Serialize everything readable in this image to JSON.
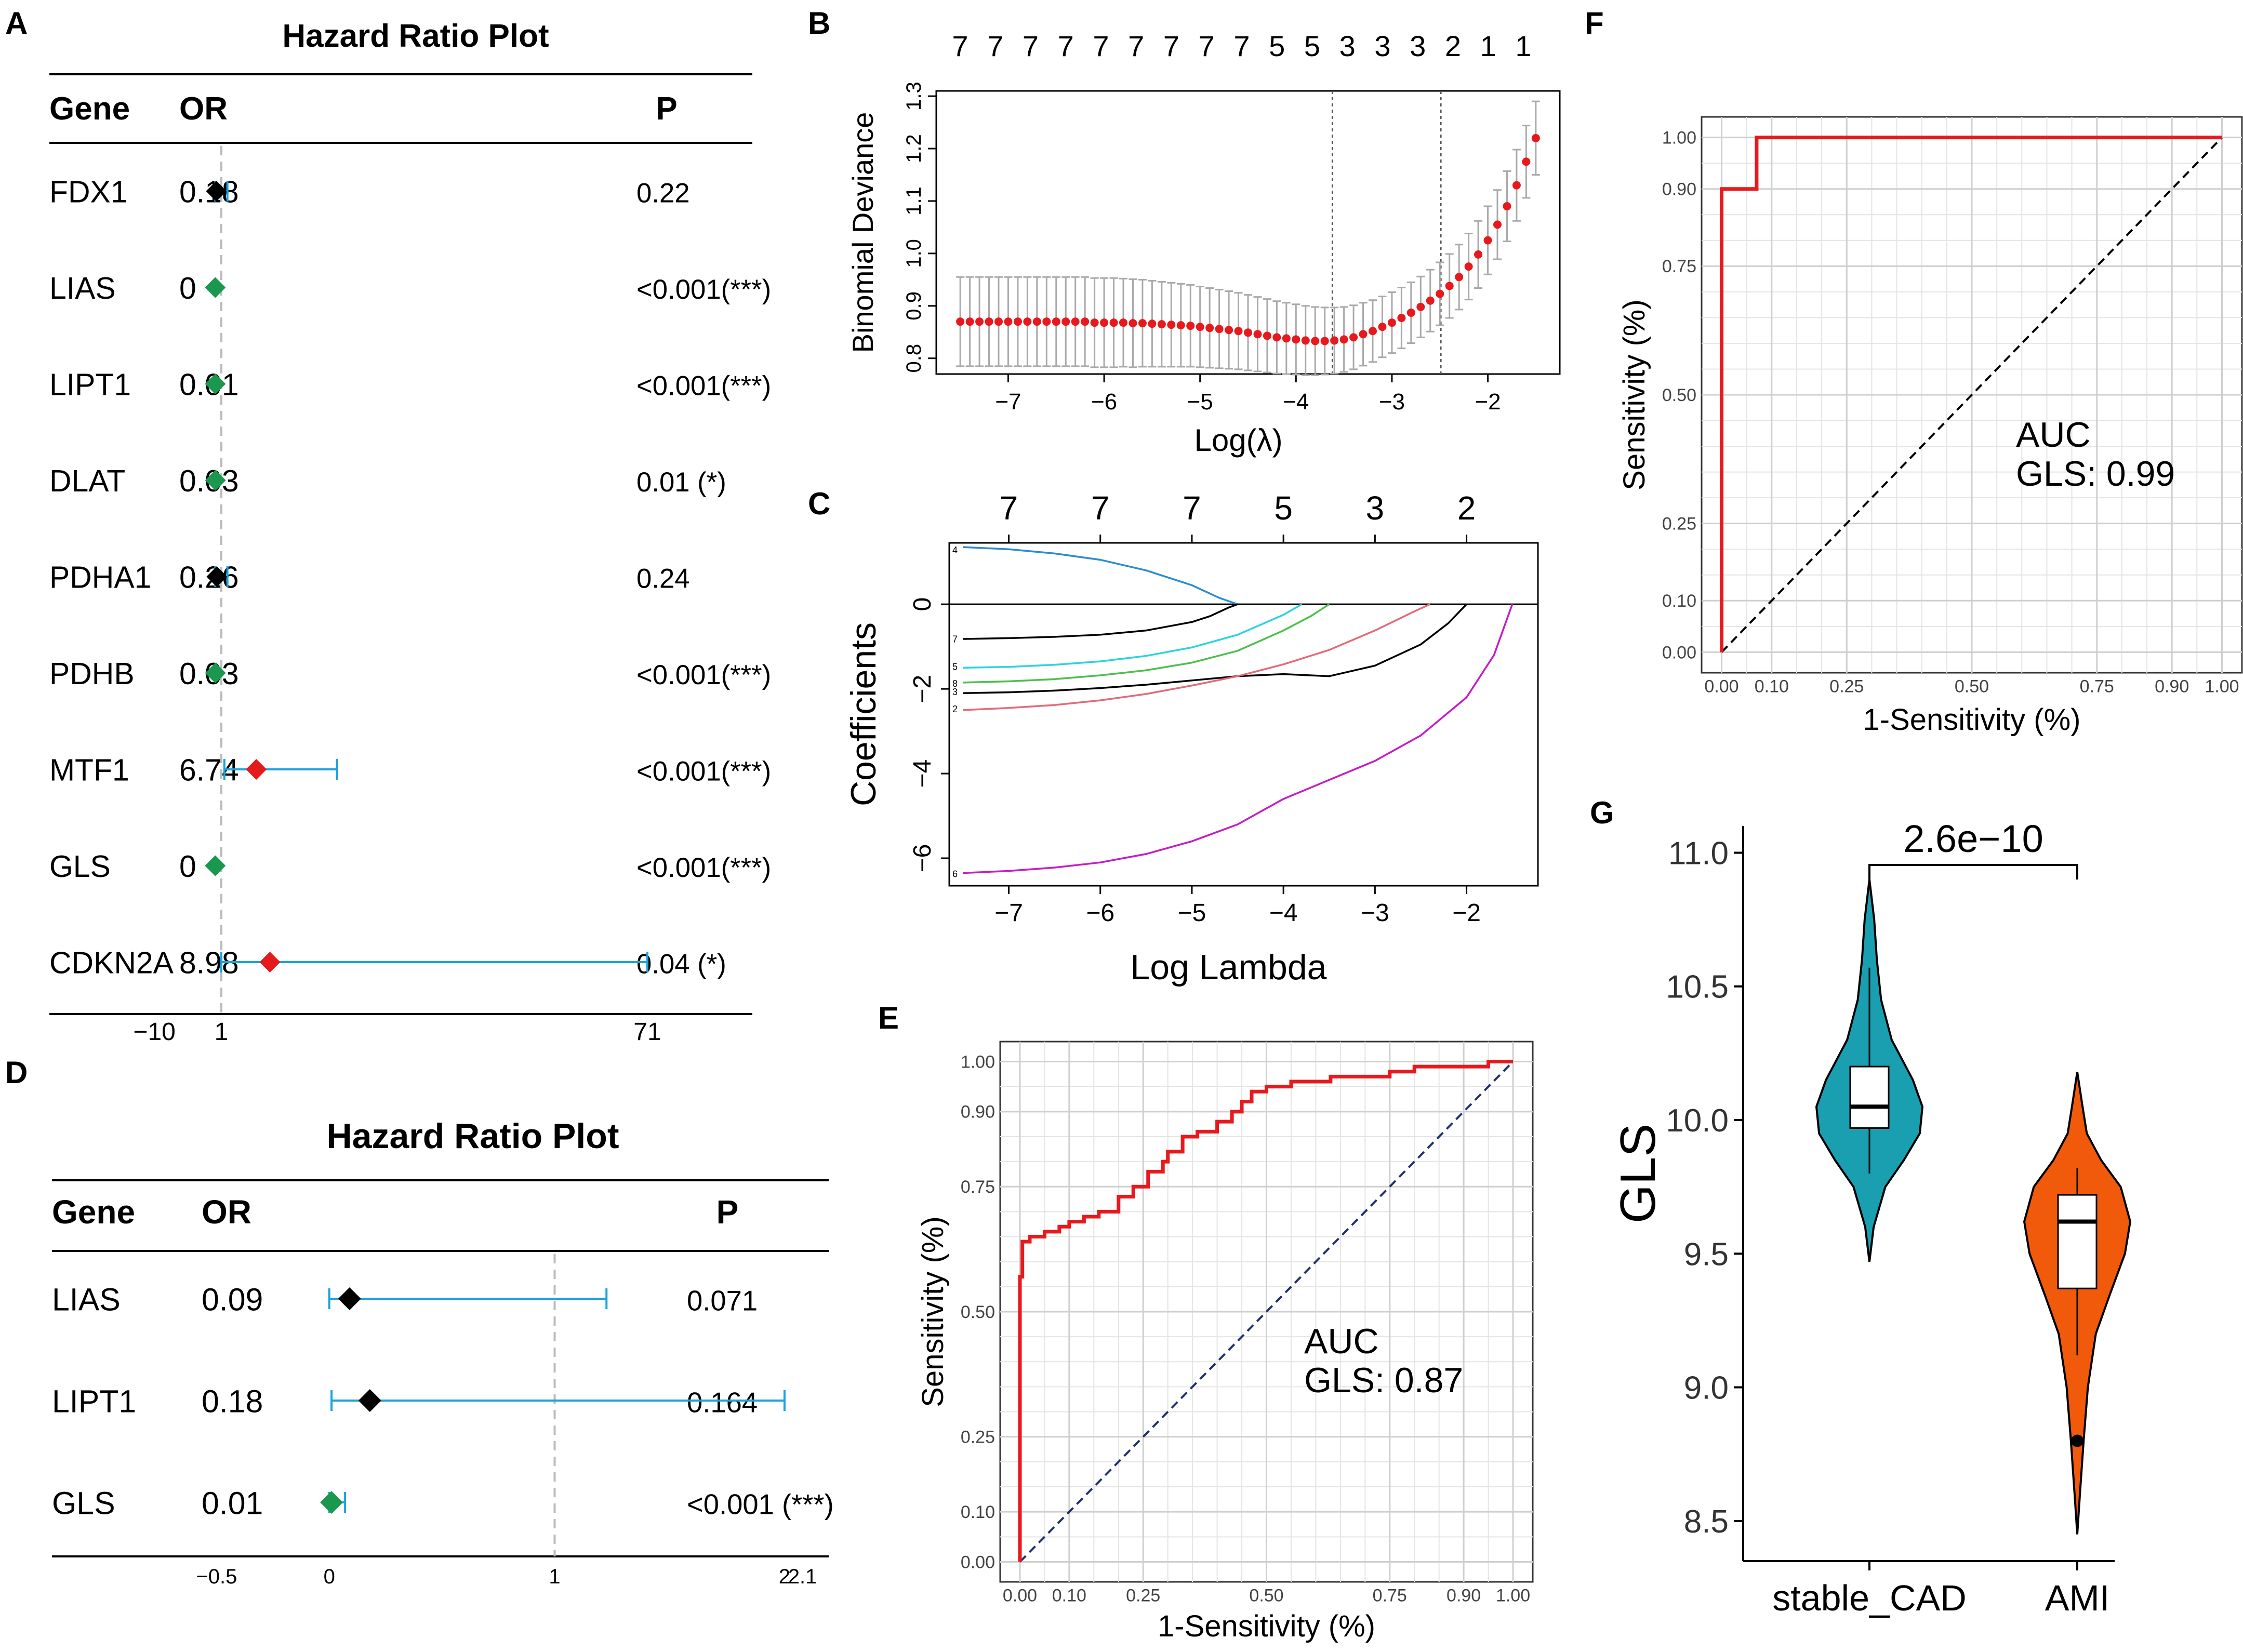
{
  "chart_data": [
    {
      "panel": "A",
      "type": "forest",
      "title": "Hazard Ratio Plot",
      "columns": [
        "Gene",
        "OR",
        "P"
      ],
      "xaxis_ticks": [
        {
          "value": -10,
          "label": "−10"
        },
        {
          "value": 1,
          "label": "1"
        },
        {
          "value": 71,
          "label": "71"
        }
      ],
      "xlim": [
        -20,
        85
      ],
      "reference_line": 1,
      "rows": [
        {
          "gene": "FDX1",
          "or_label": "0.18",
          "p_label": "0.22",
          "or": 0.18,
          "ci": [
            0,
            2
          ],
          "color": "#000000"
        },
        {
          "gene": "LIAS",
          "or_label": "0",
          "p_label": "<0.001(***)",
          "or": 0,
          "ci": [
            0,
            0
          ],
          "color": "#1a9850"
        },
        {
          "gene": "LIPT1",
          "or_label": "0.01",
          "p_label": "<0.001(***)",
          "or": 0.01,
          "ci": [
            0,
            0
          ],
          "color": "#1a9850"
        },
        {
          "gene": "DLAT",
          "or_label": "0.03",
          "p_label": "0.01 (*)",
          "or": 0.03,
          "ci": [
            0,
            0.1
          ],
          "color": "#1a9850"
        },
        {
          "gene": "PDHA1",
          "or_label": "0.26",
          "p_label": "0.24",
          "or": 0.26,
          "ci": [
            0,
            2
          ],
          "color": "#000000"
        },
        {
          "gene": "PDHB",
          "or_label": "0.03",
          "p_label": "<0.001(***)",
          "or": 0.03,
          "ci": [
            0,
            0.1
          ],
          "color": "#1a9850"
        },
        {
          "gene": "MTF1",
          "or_label": "6.74",
          "p_label": "<0.001(***)",
          "or": 6.74,
          "ci": [
            1.5,
            20
          ],
          "color": "#e41a1c"
        },
        {
          "gene": "GLS",
          "or_label": "0",
          "p_label": "<0.001(***)",
          "or": 0,
          "ci": [
            0,
            0
          ],
          "color": "#1a9850"
        },
        {
          "gene": "CDKN2A",
          "or_label": "8.98",
          "p_label": "0.04 (*)",
          "or": 8.98,
          "ci": [
            1,
            71
          ],
          "color": "#e41a1c"
        }
      ]
    },
    {
      "panel": "B",
      "type": "line",
      "xlabel": "Log(λ)",
      "ylabel": "Binomial Deviance",
      "xlim": [
        -7.75,
        -1.25
      ],
      "ylim": [
        0.77,
        1.31
      ],
      "xticks": [
        -7,
        -6,
        -5,
        -4,
        -3,
        -2
      ],
      "xtick_labels": [
        "−7",
        "−6",
        "−5",
        "−4",
        "−3",
        "−2"
      ],
      "yticks": [
        0.8,
        0.9,
        1.0,
        1.1,
        1.2,
        1.3
      ],
      "ytick_labels": [
        "0.8",
        "0.9",
        "1.0",
        "1.1",
        "1.2",
        "1.3"
      ],
      "top_labels": [
        "7",
        "7",
        "7",
        "7",
        "7",
        "7",
        "7",
        "7",
        "7",
        "5",
        "5",
        "3",
        "3",
        "3",
        "2",
        "1",
        "1"
      ],
      "vlines": [
        -3.62,
        -2.49
      ],
      "series": [
        {
          "name": "cv",
          "x": [
            -7.5,
            -7.4,
            -7.3,
            -7.2,
            -7.1,
            -7.0,
            -6.9,
            -6.8,
            -6.7,
            -6.6,
            -6.5,
            -6.4,
            -6.3,
            -6.2,
            -6.1,
            -6.0,
            -5.9,
            -5.8,
            -5.7,
            -5.6,
            -5.5,
            -5.4,
            -5.3,
            -5.2,
            -5.1,
            -5.0,
            -4.9,
            -4.8,
            -4.7,
            -4.6,
            -4.5,
            -4.4,
            -4.3,
            -4.2,
            -4.1,
            -4.0,
            -3.9,
            -3.8,
            -3.7,
            -3.6,
            -3.5,
            -3.4,
            -3.3,
            -3.2,
            -3.1,
            -3.0,
            -2.9,
            -2.8,
            -2.7,
            -2.6,
            -2.5,
            -2.4,
            -2.3,
            -2.2,
            -2.1,
            -2.0,
            -1.9,
            -1.8,
            -1.7,
            -1.6,
            -1.5
          ],
          "y": [
            0.87,
            0.87,
            0.87,
            0.87,
            0.87,
            0.87,
            0.87,
            0.87,
            0.87,
            0.87,
            0.87,
            0.87,
            0.87,
            0.87,
            0.868,
            0.868,
            0.868,
            0.868,
            0.867,
            0.867,
            0.866,
            0.865,
            0.864,
            0.863,
            0.862,
            0.86,
            0.858,
            0.856,
            0.854,
            0.852,
            0.849,
            0.846,
            0.843,
            0.84,
            0.838,
            0.836,
            0.834,
            0.833,
            0.833,
            0.834,
            0.836,
            0.84,
            0.846,
            0.852,
            0.86,
            0.868,
            0.877,
            0.887,
            0.898,
            0.91,
            0.923,
            0.938,
            0.955,
            0.975,
            0.998,
            1.025,
            1.055,
            1.09,
            1.13,
            1.175,
            1.22
          ],
          "err": [
            0.085,
            0.085,
            0.085,
            0.085,
            0.085,
            0.085,
            0.085,
            0.085,
            0.085,
            0.085,
            0.085,
            0.085,
            0.085,
            0.085,
            0.085,
            0.085,
            0.085,
            0.084,
            0.084,
            0.083,
            0.082,
            0.081,
            0.08,
            0.079,
            0.078,
            0.077,
            0.076,
            0.075,
            0.074,
            0.073,
            0.072,
            0.071,
            0.07,
            0.069,
            0.068,
            0.067,
            0.066,
            0.065,
            0.064,
            0.063,
            0.062,
            0.061,
            0.06,
            0.059,
            0.058,
            0.058,
            0.058,
            0.058,
            0.058,
            0.059,
            0.06,
            0.061,
            0.062,
            0.063,
            0.064,
            0.065,
            0.066,
            0.067,
            0.068,
            0.069,
            0.07
          ]
        }
      ]
    },
    {
      "panel": "C",
      "type": "line",
      "xlabel": "Log Lambda",
      "ylabel": "Coefficients",
      "xlim": [
        -7.65,
        -1.22
      ],
      "ylim": [
        -6.65,
        1.45
      ],
      "xticks": [
        -7,
        -6,
        -5,
        -4,
        -3,
        -2
      ],
      "xtick_labels": [
        "−7",
        "−6",
        "−5",
        "−4",
        "−3",
        "−2"
      ],
      "yticks": [
        -6,
        -4,
        -2,
        0
      ],
      "ytick_labels": [
        "−6",
        "−4",
        "−2",
        "0"
      ],
      "top_ticks": [
        -7,
        -6,
        -5,
        -4,
        -3,
        -2
      ],
      "top_labels": [
        "7",
        "7",
        "7",
        "5",
        "3",
        "2"
      ],
      "side_labels": [
        {
          "y": 1.3,
          "label": "4"
        },
        {
          "y": -0.8,
          "label": "7"
        },
        {
          "y": -1.45,
          "label": "5"
        },
        {
          "y": -1.85,
          "label": "8"
        },
        {
          "y": -2.05,
          "label": "3"
        },
        {
          "y": -2.45,
          "label": "2"
        },
        {
          "y": -6.35,
          "label": "6"
        }
      ],
      "series": [
        {
          "name": "4",
          "color": "#2b8cce",
          "x": [
            -7.5,
            -7.0,
            -6.5,
            -6.0,
            -5.5,
            -5.0,
            -4.7,
            -4.5
          ],
          "y": [
            1.35,
            1.3,
            1.2,
            1.05,
            0.8,
            0.45,
            0.15,
            0
          ]
        },
        {
          "name": "7",
          "color": "#000000",
          "x": [
            -7.5,
            -7.0,
            -6.5,
            -6.0,
            -5.5,
            -5.0,
            -4.8,
            -4.6,
            -4.5
          ],
          "y": [
            -0.82,
            -0.8,
            -0.77,
            -0.72,
            -0.62,
            -0.42,
            -0.28,
            -0.08,
            0
          ]
        },
        {
          "name": "5",
          "color": "#2bd4dd",
          "x": [
            -7.5,
            -7.0,
            -6.5,
            -6.0,
            -5.5,
            -5.0,
            -4.5,
            -4.0,
            -3.8
          ],
          "y": [
            -1.5,
            -1.48,
            -1.43,
            -1.35,
            -1.22,
            -1.02,
            -0.72,
            -0.25,
            0
          ]
        },
        {
          "name": "8",
          "color": "#4cc04c",
          "x": [
            -7.5,
            -7.0,
            -6.5,
            -6.0,
            -5.5,
            -5.0,
            -4.5,
            -4.0,
            -3.7,
            -3.5
          ],
          "y": [
            -1.85,
            -1.82,
            -1.77,
            -1.68,
            -1.56,
            -1.38,
            -1.1,
            -0.62,
            -0.28,
            0
          ]
        },
        {
          "name": "3",
          "color": "#000000",
          "x": [
            -7.5,
            -7.0,
            -6.5,
            -6.0,
            -5.5,
            -5.0,
            -4.5,
            -4.0,
            -3.5,
            -3.0,
            -2.5,
            -2.2,
            -2.0
          ],
          "y": [
            -2.1,
            -2.08,
            -2.04,
            -1.98,
            -1.9,
            -1.8,
            -1.7,
            -1.65,
            -1.7,
            -1.45,
            -0.95,
            -0.45,
            0
          ]
        },
        {
          "name": "2",
          "color": "#e36a7a",
          "x": [
            -7.5,
            -7.0,
            -6.5,
            -6.0,
            -5.5,
            -5.0,
            -4.5,
            -4.0,
            -3.5,
            -3.0,
            -2.6,
            -2.4
          ],
          "y": [
            -2.5,
            -2.45,
            -2.38,
            -2.27,
            -2.12,
            -1.92,
            -1.7,
            -1.42,
            -1.08,
            -0.62,
            -0.2,
            0
          ]
        },
        {
          "name": "6",
          "color": "#c71bc7",
          "x": [
            -7.5,
            -7.0,
            -6.5,
            -6.0,
            -5.5,
            -5.0,
            -4.5,
            -4.0,
            -3.5,
            -3.0,
            -2.5,
            -2.0,
            -1.7,
            -1.5
          ],
          "y": [
            -6.35,
            -6.3,
            -6.22,
            -6.1,
            -5.9,
            -5.6,
            -5.2,
            -4.6,
            -4.15,
            -3.7,
            -3.1,
            -2.2,
            -1.2,
            0
          ]
        }
      ]
    },
    {
      "panel": "D",
      "type": "forest",
      "title": "Hazard Ratio Plot",
      "columns": [
        "Gene",
        "OR",
        "P"
      ],
      "xaxis_ticks": [
        {
          "value": -0.5,
          "label": "−0.5"
        },
        {
          "value": 0,
          "label": "0"
        },
        {
          "value": 1,
          "label": "1"
        },
        {
          "value": 2.1,
          "label": "2.1"
        }
      ],
      "xaxis_extra_labels": [
        {
          "value": 2.02,
          "label": "2"
        }
      ],
      "xlim": [
        -1.0,
        3.0
      ],
      "reference_line": 1,
      "rows": [
        {
          "gene": "LIAS",
          "or_label": "0.09",
          "p_label": "0.071",
          "or": 0.09,
          "ci": [
            0,
            1.23
          ],
          "color": "#000000"
        },
        {
          "gene": "LIPT1",
          "or_label": "0.18",
          "p_label": "0.164",
          "or": 0.18,
          "ci": [
            0.01,
            2.02
          ],
          "color": "#000000"
        },
        {
          "gene": "GLS",
          "or_label": "0.01",
          "p_label": "<0.001 (***)",
          "or": 0.01,
          "ci": [
            0,
            0.07
          ],
          "color": "#1a9850"
        }
      ]
    },
    {
      "panel": "E",
      "type": "roc",
      "xlabel": "1-Sensitivity (%)",
      "ylabel": "Sensitivity (%)",
      "ticks": [
        0,
        0.1,
        0.25,
        0.5,
        0.75,
        0.9,
        1.0
      ],
      "tick_labels": [
        "0.00",
        "0.10",
        "0.25",
        "0.50",
        "0.75",
        "0.90",
        "1.00"
      ],
      "annotation": [
        "AUC",
        "GLS: 0.87"
      ],
      "fpr": [
        0,
        0,
        0.005,
        0.005,
        0.02,
        0.02,
        0.05,
        0.05,
        0.08,
        0.08,
        0.1,
        0.1,
        0.13,
        0.13,
        0.16,
        0.16,
        0.2,
        0.2,
        0.23,
        0.23,
        0.26,
        0.26,
        0.29,
        0.29,
        0.3,
        0.3,
        0.33,
        0.33,
        0.36,
        0.36,
        0.4,
        0.4,
        0.43,
        0.43,
        0.45,
        0.45,
        0.47,
        0.47,
        0.5,
        0.5,
        0.55,
        0.55,
        0.63,
        0.63,
        0.75,
        0.75,
        0.8,
        0.8,
        0.88,
        0.88,
        0.95,
        0.95,
        1.0
      ],
      "tpr": [
        0,
        0.57,
        0.57,
        0.64,
        0.64,
        0.65,
        0.65,
        0.66,
        0.66,
        0.67,
        0.67,
        0.68,
        0.68,
        0.69,
        0.69,
        0.7,
        0.7,
        0.73,
        0.73,
        0.75,
        0.75,
        0.78,
        0.78,
        0.8,
        0.8,
        0.82,
        0.82,
        0.85,
        0.85,
        0.86,
        0.86,
        0.88,
        0.88,
        0.9,
        0.9,
        0.92,
        0.92,
        0.94,
        0.94,
        0.95,
        0.95,
        0.96,
        0.96,
        0.97,
        0.97,
        0.98,
        0.98,
        0.99,
        0.99,
        0.99,
        0.99,
        1.0,
        1.0
      ],
      "line_color": "#e8191d",
      "diag_color": "#1f2f6f"
    },
    {
      "panel": "F",
      "type": "roc",
      "xlabel": "1-Sensitivity (%)",
      "ylabel": "Sensitivity (%)",
      "ticks": [
        0,
        0.1,
        0.25,
        0.5,
        0.75,
        0.9,
        1.0
      ],
      "tick_labels": [
        "0.00",
        "0.10",
        "0.25",
        "0.50",
        "0.75",
        "0.90",
        "1.00"
      ],
      "annotation": [
        "AUC",
        "GLS: 0.99"
      ],
      "fpr": [
        0,
        0,
        0.07,
        0.07,
        1.0
      ],
      "tpr": [
        0,
        0.9,
        0.9,
        1.0,
        1.0
      ],
      "line_color": "#e8191d",
      "diag_color": "#000000"
    },
    {
      "panel": "G",
      "type": "violin",
      "ylabel": "GLS",
      "ylim": [
        8.35,
        11.1
      ],
      "yticks": [
        8.5,
        9.0,
        9.5,
        10.0,
        10.5,
        11.0
      ],
      "ytick_labels": [
        "8.5",
        "9.0",
        "9.5",
        "10.0",
        "10.5",
        "11.0"
      ],
      "categories": [
        "stable_CAD",
        "AMI"
      ],
      "comparison_label": "2.6e−10",
      "groups": [
        {
          "name": "stable_CAD",
          "color": "#1a9fb1",
          "q1": 9.97,
          "median": 10.05,
          "q3": 10.2,
          "whisker_low": 9.8,
          "whisker_high": 10.57,
          "min": 9.47,
          "max": 10.9,
          "outliers": [],
          "density": [
            [
              9.47,
              0.0
            ],
            [
              9.6,
              0.08
            ],
            [
              9.75,
              0.3
            ],
            [
              9.85,
              0.65
            ],
            [
              9.95,
              0.95
            ],
            [
              10.05,
              1.0
            ],
            [
              10.15,
              0.82
            ],
            [
              10.3,
              0.42
            ],
            [
              10.45,
              0.22
            ],
            [
              10.6,
              0.14
            ],
            [
              10.75,
              0.09
            ],
            [
              10.9,
              0.0
            ]
          ]
        },
        {
          "name": "AMI",
          "color": "#f05a0a",
          "q1": 9.37,
          "median": 9.62,
          "q3": 9.72,
          "whisker_low": 9.12,
          "whisker_high": 9.82,
          "min": 8.45,
          "max": 10.18,
          "outliers": [
            8.8
          ],
          "density": [
            [
              8.45,
              0.0
            ],
            [
              8.6,
              0.05
            ],
            [
              8.8,
              0.12
            ],
            [
              9.0,
              0.2
            ],
            [
              9.2,
              0.35
            ],
            [
              9.35,
              0.62
            ],
            [
              9.5,
              0.9
            ],
            [
              9.62,
              1.0
            ],
            [
              9.75,
              0.82
            ],
            [
              9.85,
              0.45
            ],
            [
              9.95,
              0.18
            ],
            [
              10.05,
              0.1
            ],
            [
              10.18,
              0.0
            ]
          ]
        }
      ]
    }
  ]
}
